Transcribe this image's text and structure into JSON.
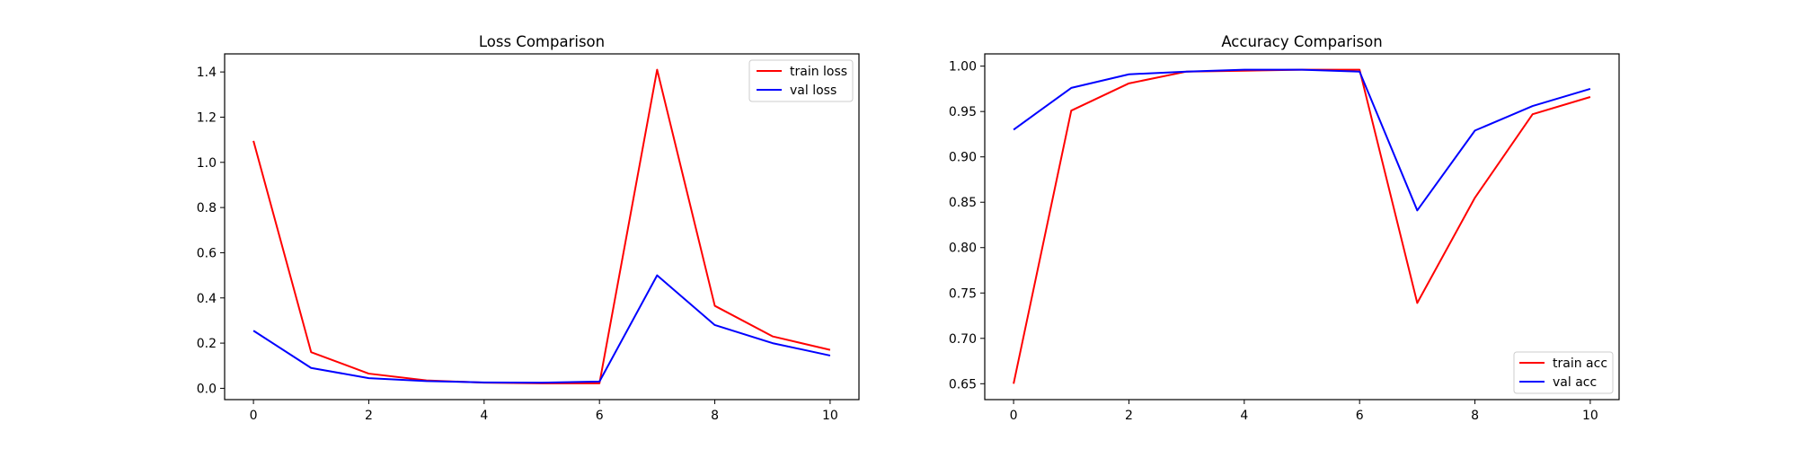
{
  "chart_data": [
    {
      "type": "line",
      "title": "Loss Comparison",
      "xlabel": "",
      "ylabel": "",
      "x": [
        0,
        1,
        2,
        3,
        4,
        5,
        6,
        7,
        8,
        9,
        10
      ],
      "xlim": [
        -0.5,
        10.5
      ],
      "ylim": [
        -0.05,
        1.48
      ],
      "xticks": [
        0,
        2,
        4,
        6,
        8,
        10
      ],
      "yticks": [
        0.0,
        0.2,
        0.4,
        0.6,
        0.8,
        1.0,
        1.2,
        1.4
      ],
      "ytick_labels": [
        "0.0",
        "0.2",
        "0.4",
        "0.6",
        "0.8",
        "1.0",
        "1.2",
        "1.4"
      ],
      "grid": false,
      "legend_position": "top-right",
      "series": [
        {
          "name": "train loss",
          "color": "#ff0000",
          "values": [
            1.095,
            0.16,
            0.065,
            0.035,
            0.025,
            0.022,
            0.022,
            1.41,
            0.365,
            0.23,
            0.17
          ]
        },
        {
          "name": "val loss",
          "color": "#0000ff",
          "values": [
            0.255,
            0.09,
            0.045,
            0.032,
            0.026,
            0.025,
            0.03,
            0.5,
            0.28,
            0.2,
            0.145
          ]
        }
      ]
    },
    {
      "type": "line",
      "title": "Accuracy Comparison",
      "xlabel": "",
      "ylabel": "",
      "x": [
        0,
        1,
        2,
        3,
        4,
        5,
        6,
        7,
        8,
        9,
        10
      ],
      "xlim": [
        -0.5,
        10.5
      ],
      "ylim": [
        0.6325,
        1.0135
      ],
      "xticks": [
        0,
        2,
        4,
        6,
        8,
        10
      ],
      "yticks": [
        0.65,
        0.7,
        0.75,
        0.8,
        0.85,
        0.9,
        0.95,
        1.0
      ],
      "ytick_labels": [
        "0.65",
        "0.70",
        "0.75",
        "0.80",
        "0.85",
        "0.90",
        "0.95",
        "1.00"
      ],
      "grid": false,
      "legend_position": "bottom-right",
      "series": [
        {
          "name": "train acc",
          "color": "#ff0000",
          "values": [
            0.65,
            0.951,
            0.981,
            0.994,
            0.995,
            0.996,
            0.996,
            0.739,
            0.855,
            0.947,
            0.966
          ]
        },
        {
          "name": "val acc",
          "color": "#0000ff",
          "values": [
            0.93,
            0.976,
            0.991,
            0.994,
            0.996,
            0.996,
            0.994,
            0.841,
            0.929,
            0.956,
            0.975
          ]
        }
      ]
    }
  ]
}
